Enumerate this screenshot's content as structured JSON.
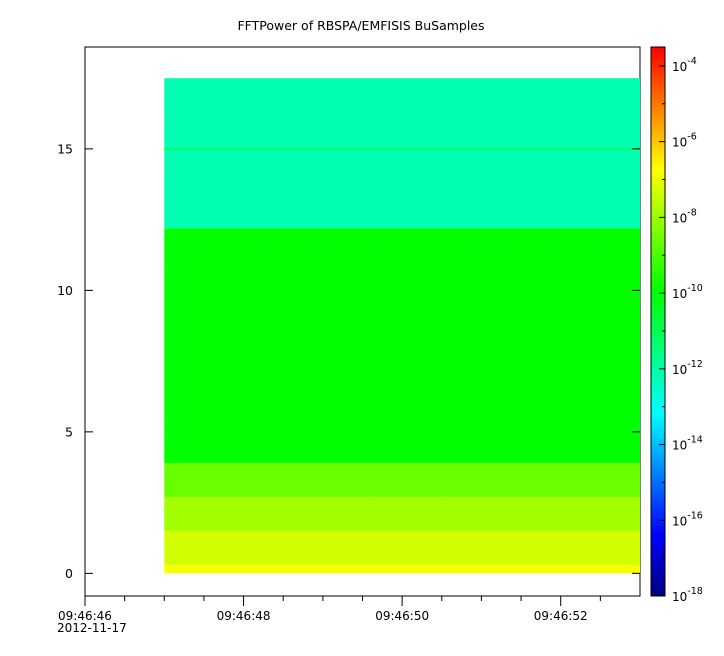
{
  "chart_data": {
    "type": "heatmap",
    "title": "FFTPower of RBSPA/EMFISIS  BuSamples",
    "x_axis": {
      "start": "09:46:46",
      "end": "09:46:53.0",
      "data_start": "09:46:47",
      "data_end": "09:46:53",
      "ticks": [
        "09:46:46",
        "09:46:48",
        "09:46:50",
        "09:46:52"
      ],
      "minor_ticks": [
        "09:46:46.5",
        "09:46:47",
        "09:46:47.5",
        "09:46:48.5",
        "09:46:49",
        "09:46:49.5",
        "09:46:50.5",
        "09:46:51",
        "09:46:51.5",
        "09:46:52.5"
      ],
      "date_label": "2012-11-17"
    },
    "y_axis": {
      "range": [
        -0.8,
        18.6
      ],
      "ticks": [
        0,
        5,
        10,
        15
      ],
      "data_range": [
        0,
        17.5
      ]
    },
    "color_bar": {
      "scale": "log",
      "range_exponent": [
        -18,
        -3.5
      ],
      "tick_exponents": [
        -18,
        -16,
        -14,
        -12,
        -10,
        -8,
        -6,
        -4
      ],
      "tick_base": "10",
      "colormap": [
        "#000080",
        "#0000ff",
        "#0080ff",
        "#00ffff",
        "#00ff80",
        "#00ff00",
        "#80ff00",
        "#ffff00",
        "#ff8000",
        "#ff0000"
      ]
    },
    "bands": [
      {
        "y_from": 0.0,
        "y_to": 0.3,
        "log_power": -6.8
      },
      {
        "y_from": 0.3,
        "y_to": 1.5,
        "log_power": -7.3
      },
      {
        "y_from": 1.5,
        "y_to": 2.7,
        "log_power": -7.9
      },
      {
        "y_from": 2.7,
        "y_to": 3.9,
        "log_power": -8.6
      },
      {
        "y_from": 3.9,
        "y_to": 12.2,
        "log_power": -10.0
      },
      {
        "y_from": 12.2,
        "y_to": 17.5,
        "log_power": -12.2
      }
    ],
    "line_features": [
      {
        "y": 15.0,
        "log_power": -11.2
      }
    ]
  }
}
